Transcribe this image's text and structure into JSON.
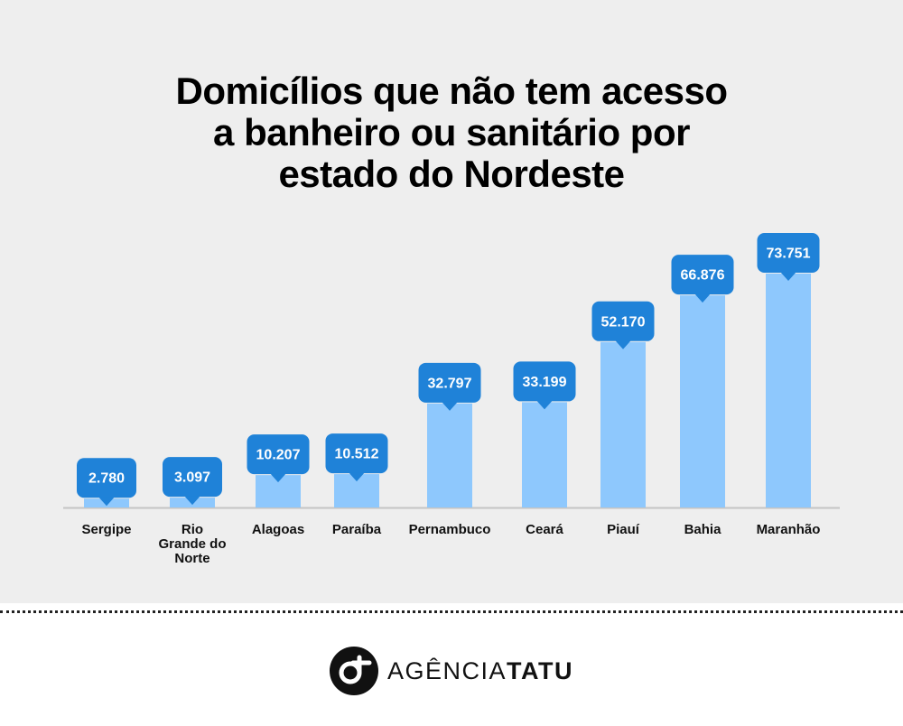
{
  "chart_data": {
    "type": "bar",
    "title": "Domicílios que não tem acesso a banheiro ou sanitário por estado do Nordeste",
    "title_lines": [
      "Domicílios que não tem acesso",
      "a banheiro ou sanitário por",
      "estado do Nordeste"
    ],
    "categories": [
      "Sergipe",
      "Rio Grande do Norte",
      "Alagoas",
      "Paraíba",
      "Pernambuco",
      "Ceará",
      "Piauí",
      "Bahia",
      "Maranhão"
    ],
    "category_label_lines": [
      [
        "Sergipe"
      ],
      [
        "Rio",
        "Grande do",
        "Norte"
      ],
      [
        "Alagoas"
      ],
      [
        "Paraíba"
      ],
      [
        "Pernambuco"
      ],
      [
        "Ceará"
      ],
      [
        "Piauí"
      ],
      [
        "Bahia"
      ],
      [
        "Maranhão"
      ]
    ],
    "values": [
      2780,
      3097,
      10207,
      10512,
      32797,
      33199,
      52170,
      66876,
      73751
    ],
    "value_labels": [
      "2.780",
      "3.097",
      "10.207",
      "10.512",
      "32.797",
      "33.199",
      "52.170",
      "66.876",
      "73.751"
    ],
    "ylim": [
      0,
      73751
    ],
    "grid": false,
    "legend": "none",
    "colors": {
      "bar": "#8ec8fd",
      "label_bubble": "#1f82d8",
      "label_text": "#ffffff",
      "axis": "#c4c4c4",
      "category_text": "#111111"
    }
  },
  "footer": {
    "logo_icon": "agencia-tatu-logo-icon",
    "brand_light": "AGÊNCIA",
    "brand_bold": "TATU"
  }
}
